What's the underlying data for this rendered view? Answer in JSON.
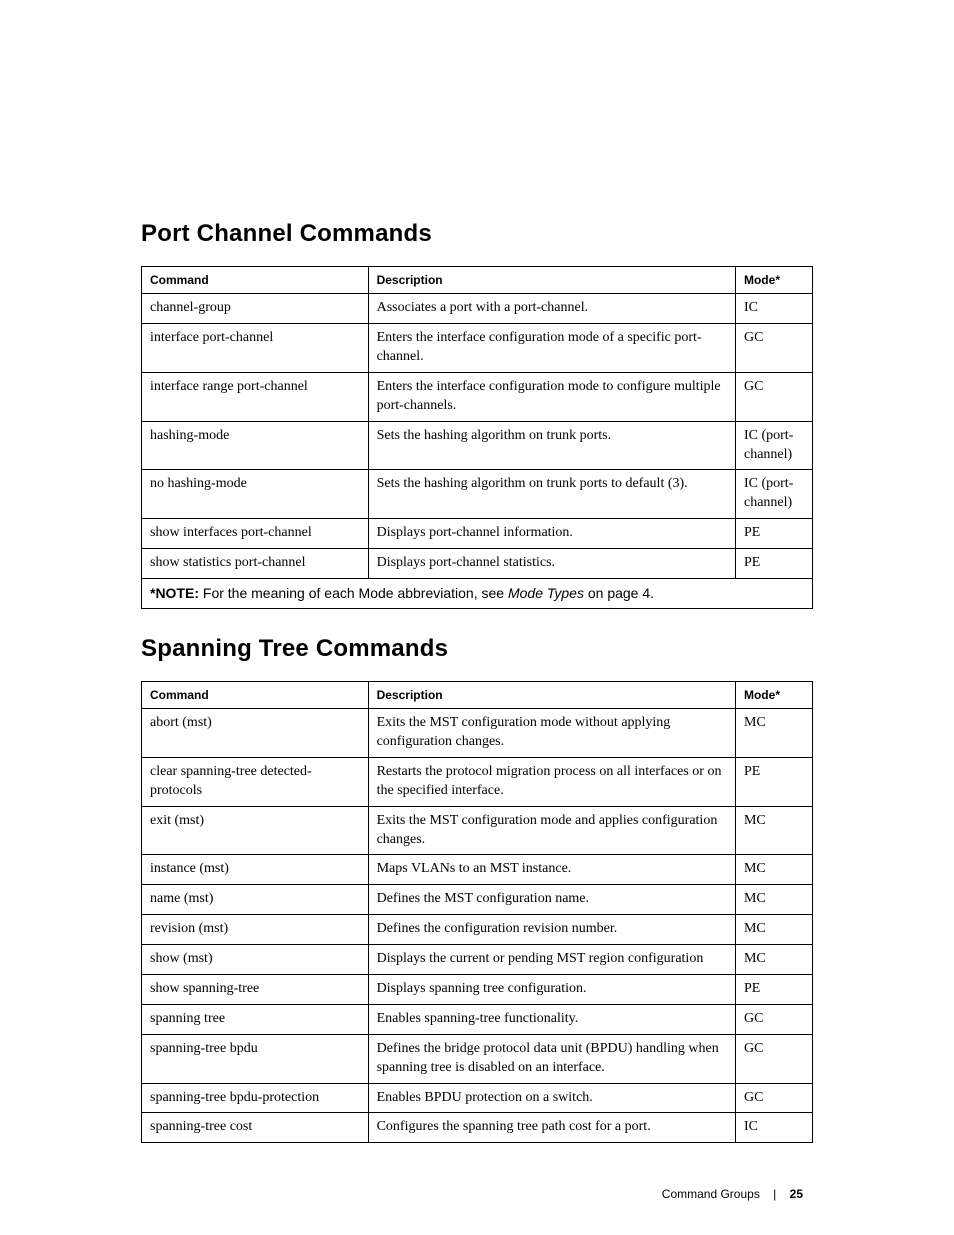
{
  "headers": {
    "command": "Command",
    "description": "Description",
    "mode": "Mode*"
  },
  "section1": {
    "title": "Port Channel Commands",
    "rows": [
      {
        "cmd": "channel-group",
        "desc": "Associates a port with a port-channel.",
        "mode": "IC"
      },
      {
        "cmd": "interface port-channel",
        "desc": "Enters the interface configuration mode of a specific port-channel.",
        "mode": "GC"
      },
      {
        "cmd": "interface range port-channel",
        "desc": "Enters the interface configuration mode to configure multiple port-channels.",
        "mode": "GC"
      },
      {
        "cmd": "hashing-mode",
        "desc": "Sets the hashing algorithm on trunk ports.",
        "mode": "IC (port-channel)"
      },
      {
        "cmd": "no hashing-mode",
        "desc": "Sets the hashing algorithm on trunk ports to default (3).",
        "mode": "IC (port-channel)"
      },
      {
        "cmd": "show interfaces port-channel",
        "desc": "Displays port-channel information.",
        "mode": "PE"
      },
      {
        "cmd": "show statistics port-channel",
        "desc": "Displays port-channel statistics.",
        "mode": "PE"
      }
    ],
    "note_prefix": "*NOTE:",
    "note_text_lead": " For the meaning of each Mode abbreviation, see ",
    "note_em": "Mode Types",
    "note_text_tail": " on page 4."
  },
  "section2": {
    "title": "Spanning Tree Commands",
    "rows": [
      {
        "cmd": "abort (mst)",
        "desc": "Exits the MST configuration mode without applying configuration changes.",
        "mode": "MC"
      },
      {
        "cmd": "clear spanning-tree detected-protocols",
        "desc": "Restarts the protocol migration process on all interfaces or on the specified interface.",
        "mode": "PE"
      },
      {
        "cmd": "exit (mst)",
        "desc": "Exits the MST configuration mode and applies configuration changes.",
        "mode": "MC"
      },
      {
        "cmd": "instance (mst)",
        "desc": "Maps VLANs to an MST instance.",
        "mode": "MC"
      },
      {
        "cmd": "name (mst)",
        "desc": "Defines the MST configuration name.",
        "mode": "MC"
      },
      {
        "cmd": "revision (mst)",
        "desc": "Defines the configuration revision number.",
        "mode": "MC"
      },
      {
        "cmd": "show (mst)",
        "desc": "Displays the current or pending MST region configuration",
        "mode": "MC"
      },
      {
        "cmd": "show spanning-tree",
        "desc": "Displays spanning tree configuration.",
        "mode": "PE"
      },
      {
        "cmd": "spanning tree",
        "desc": "Enables spanning-tree functionality.",
        "mode": "GC"
      },
      {
        "cmd": "spanning-tree bpdu",
        "desc": "Defines the bridge protocol data unit (BPDU) handling when spanning tree is disabled on an interface.",
        "mode": "GC"
      },
      {
        "cmd": "spanning-tree bpdu-protection",
        "desc": "Enables BPDU protection on a switch.",
        "mode": "GC"
      },
      {
        "cmd": "spanning-tree cost",
        "desc": "Configures the spanning tree path cost for a port.",
        "mode": "IC"
      }
    ]
  },
  "footer": {
    "chapter": "Command Groups",
    "sep": "|",
    "page": "25"
  }
}
